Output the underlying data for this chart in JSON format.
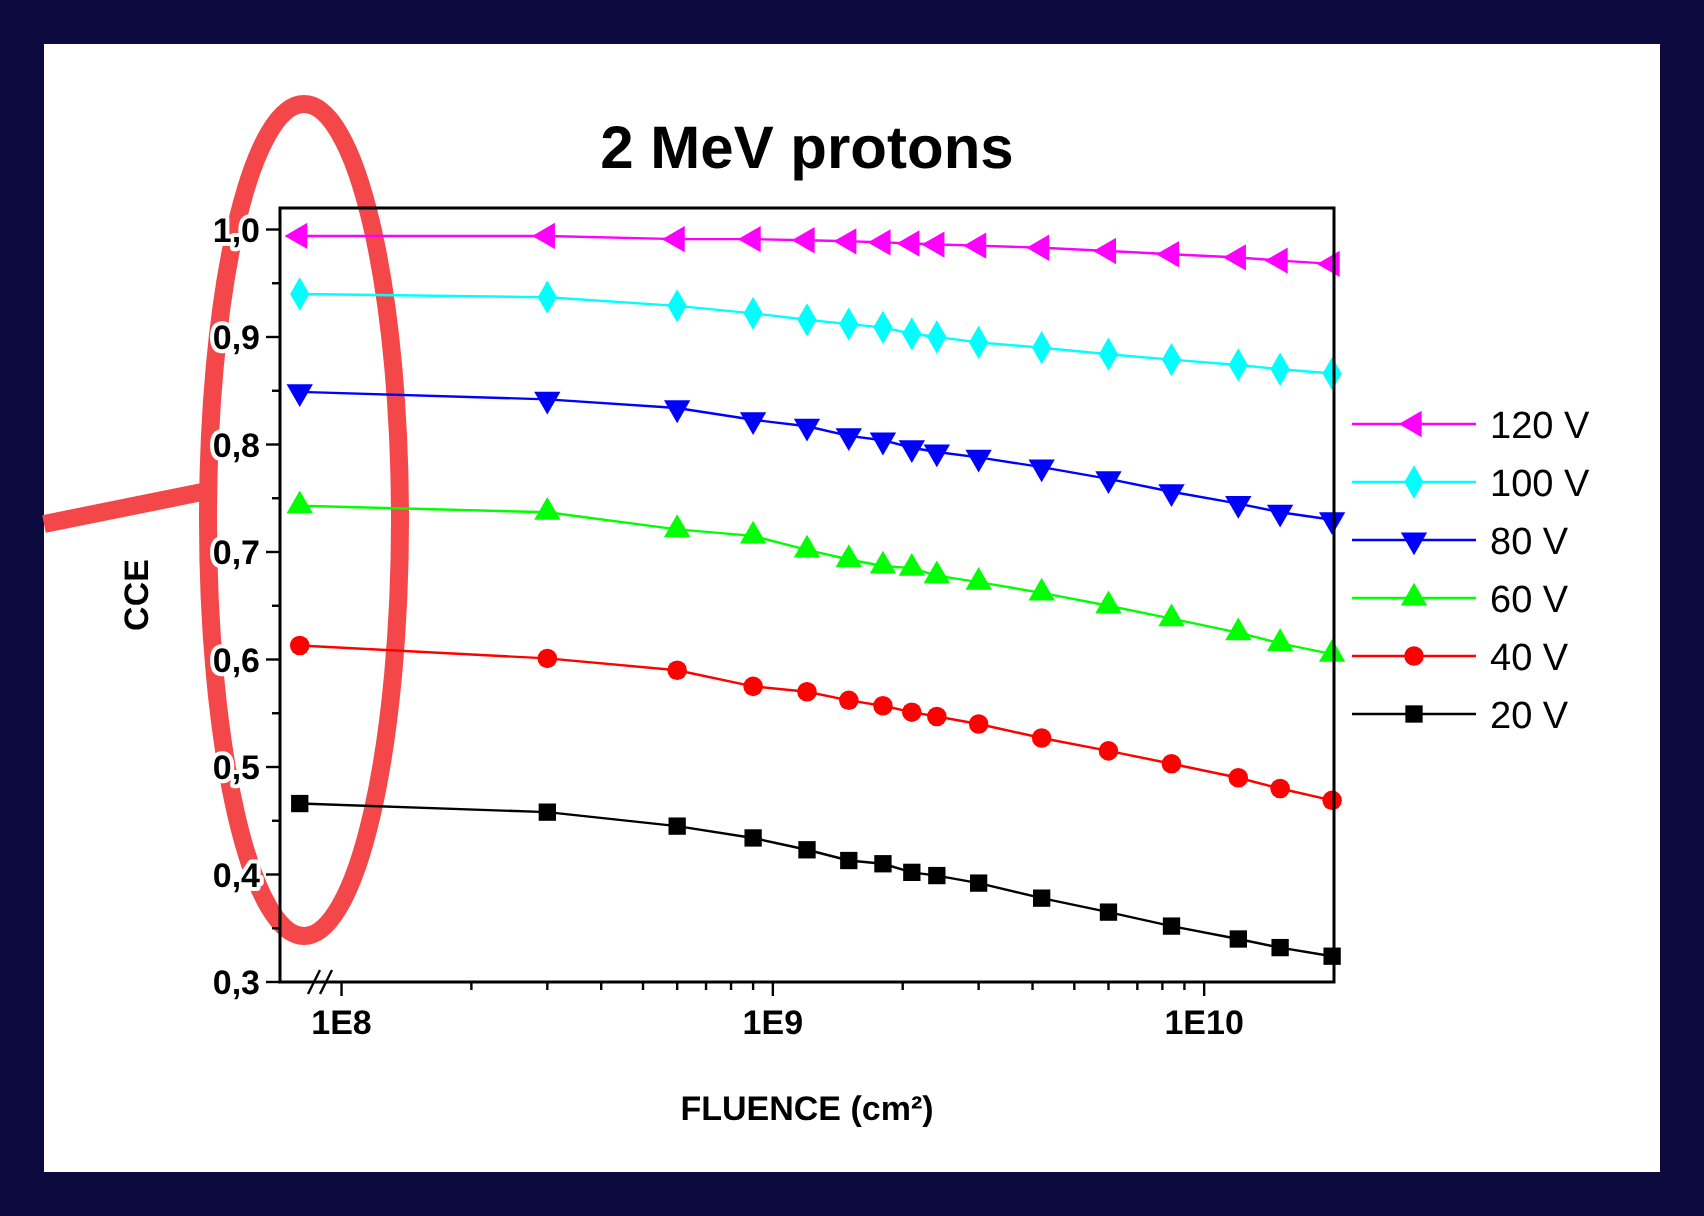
{
  "chart_data": {
    "type": "line",
    "title": "2 MeV protons",
    "xlabel": "FLUENCE (cm²)",
    "ylabel": "CCE",
    "log": "x",
    "legend": "right",
    "grid": false,
    "x": [
      80000000.0,
      300000000.0,
      600000000.0,
      900000000.0,
      1200000000.0,
      1500000000.0,
      1800000000.0,
      2100000000.0,
      2400000000.0,
      3000000000.0,
      4200000000.0,
      6000000000.0,
      8400000000.0,
      12000000000.0,
      15000000000.0,
      19800000000.0
    ],
    "xlim": [
      72000000.0,
      20000000000.0
    ],
    "xticks": [
      {
        "value": 100000000.0,
        "label": "1E8"
      },
      {
        "value": 200000000.0,
        "label": null
      },
      {
        "value": 300000000.0,
        "label": null
      },
      {
        "value": 400000000.0,
        "label": null
      },
      {
        "value": 500000000.0,
        "label": null
      },
      {
        "value": 600000000.0,
        "label": null
      },
      {
        "value": 700000000.0,
        "label": null
      },
      {
        "value": 800000000.0,
        "label": null
      },
      {
        "value": 900000000.0,
        "label": null
      },
      {
        "value": 1000000000.0,
        "label": "1E9"
      },
      {
        "value": 2000000000.0,
        "label": null
      },
      {
        "value": 3000000000.0,
        "label": null
      },
      {
        "value": 4000000000.0,
        "label": null
      },
      {
        "value": 5000000000.0,
        "label": null
      },
      {
        "value": 6000000000.0,
        "label": null
      },
      {
        "value": 7000000000.0,
        "label": null
      },
      {
        "value": 8000000000.0,
        "label": null
      },
      {
        "value": 9000000000.0,
        "label": null
      },
      {
        "value": 10000000000.0,
        "label": "1E10"
      }
    ],
    "ylim": [
      0.3,
      1.02
    ],
    "yticks": [
      {
        "value": 0.3,
        "label": "0,3"
      },
      {
        "value": 0.35,
        "label": null
      },
      {
        "value": 0.4,
        "label": "0,4"
      },
      {
        "value": 0.45,
        "label": null
      },
      {
        "value": 0.5,
        "label": "0,5"
      },
      {
        "value": 0.55,
        "label": null
      },
      {
        "value": 0.6,
        "label": "0,6"
      },
      {
        "value": 0.65,
        "label": null
      },
      {
        "value": 0.7,
        "label": "0,7"
      },
      {
        "value": 0.75,
        "label": null
      },
      {
        "value": 0.8,
        "label": "0,8"
      },
      {
        "value": 0.85,
        "label": null
      },
      {
        "value": 0.9,
        "label": "0,9"
      },
      {
        "value": 0.95,
        "label": null
      },
      {
        "value": 1.0,
        "label": "1,0"
      }
    ],
    "series": [
      {
        "name": "120 V",
        "color": "#ff00ff",
        "marker": "triangle-left",
        "values": [
          0.994,
          0.994,
          0.991,
          0.991,
          0.99,
          0.989,
          0.988,
          0.987,
          0.986,
          0.985,
          0.983,
          0.98,
          0.977,
          0.974,
          0.971,
          0.968
        ]
      },
      {
        "name": "100 V",
        "color": "#00ffff",
        "marker": "diamond",
        "values": [
          0.94,
          0.937,
          0.929,
          0.922,
          0.916,
          0.912,
          0.909,
          0.903,
          0.9,
          0.895,
          0.89,
          0.884,
          0.879,
          0.874,
          0.87,
          0.866
        ]
      },
      {
        "name": "80 V",
        "color": "#0000ff",
        "marker": "triangle-down",
        "values": [
          0.849,
          0.842,
          0.834,
          0.823,
          0.817,
          0.808,
          0.804,
          0.797,
          0.793,
          0.788,
          0.779,
          0.768,
          0.756,
          0.745,
          0.737,
          0.73
        ]
      },
      {
        "name": "60 V",
        "color": "#00ff00",
        "marker": "triangle",
        "values": [
          0.743,
          0.737,
          0.721,
          0.715,
          0.702,
          0.693,
          0.687,
          0.685,
          0.678,
          0.672,
          0.662,
          0.65,
          0.638,
          0.625,
          0.615,
          0.605
        ]
      },
      {
        "name": "40 V",
        "color": "#ff0000",
        "marker": "circle",
        "values": [
          0.613,
          0.601,
          0.59,
          0.575,
          0.57,
          0.562,
          0.557,
          0.551,
          0.547,
          0.54,
          0.527,
          0.515,
          0.503,
          0.49,
          0.48,
          0.469
        ]
      },
      {
        "name": "20 V",
        "color": "#000000",
        "marker": "square",
        "values": [
          0.466,
          0.458,
          0.445,
          0.434,
          0.423,
          0.413,
          0.41,
          0.402,
          0.399,
          0.392,
          0.378,
          0.365,
          0.352,
          0.34,
          0.332,
          0.324
        ]
      }
    ]
  }
}
